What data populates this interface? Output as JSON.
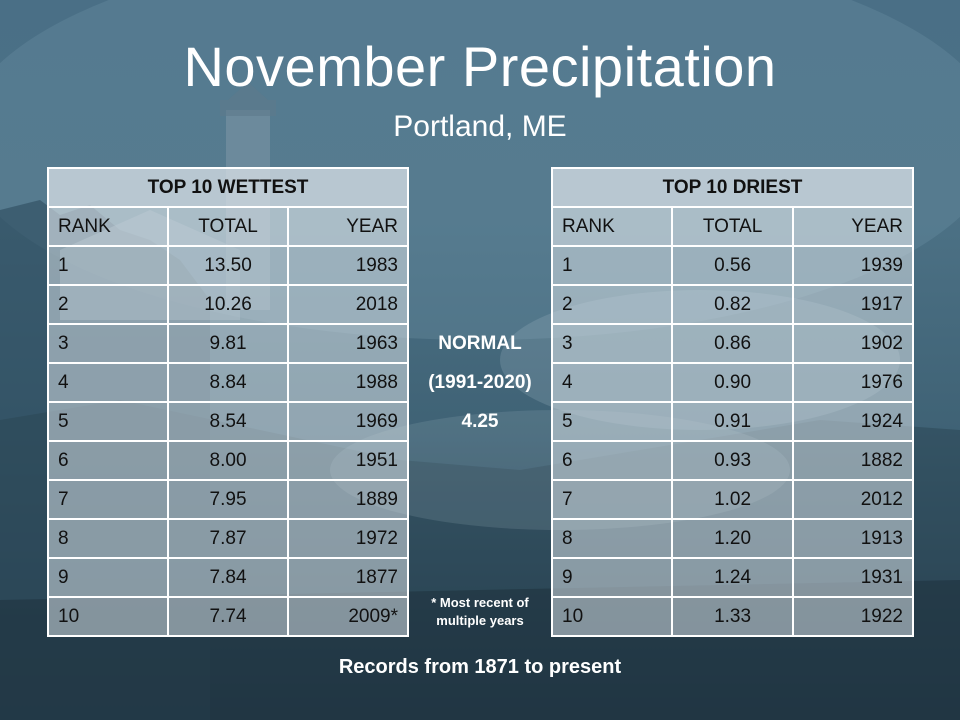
{
  "slide": {
    "title": "November Precipitation",
    "subtitle": "Portland, ME",
    "normal_label": "NORMAL",
    "normal_period": "(1991-2020)",
    "normal_value": "4.25",
    "footnote": "* Most recent of multiple years",
    "records_note": "Records from 1871 to present"
  },
  "wettest": {
    "heading": "TOP 10 WETTEST",
    "columns": [
      "RANK",
      "TOTAL",
      "YEAR"
    ],
    "rows": [
      [
        "1",
        "13.50",
        "1983"
      ],
      [
        "2",
        "10.26",
        "2018"
      ],
      [
        "3",
        "9.81",
        "1963"
      ],
      [
        "4",
        "8.84",
        "1988"
      ],
      [
        "5",
        "8.54",
        "1969"
      ],
      [
        "6",
        "8.00",
        "1951"
      ],
      [
        "7",
        "7.95",
        "1889"
      ],
      [
        "8",
        "7.87",
        "1972"
      ],
      [
        "9",
        "7.84",
        "1877"
      ],
      [
        "10",
        "7.74",
        "2009*"
      ]
    ]
  },
  "driest": {
    "heading": "TOP 10 DRIEST",
    "columns": [
      "RANK",
      "TOTAL",
      "YEAR"
    ],
    "rows": [
      [
        "1",
        "0.56",
        "1939"
      ],
      [
        "2",
        "0.82",
        "1917"
      ],
      [
        "3",
        "0.86",
        "1902"
      ],
      [
        "4",
        "0.90",
        "1976"
      ],
      [
        "5",
        "0.91",
        "1924"
      ],
      [
        "6",
        "0.93",
        "1882"
      ],
      [
        "7",
        "1.02",
        "2012"
      ],
      [
        "8",
        "1.20",
        "1913"
      ],
      [
        "9",
        "1.24",
        "1931"
      ],
      [
        "10",
        "1.33",
        "1922"
      ]
    ]
  },
  "colors": {
    "text_light": "#ffffff",
    "table_text": "#111111",
    "table_border": "#ffffff"
  }
}
